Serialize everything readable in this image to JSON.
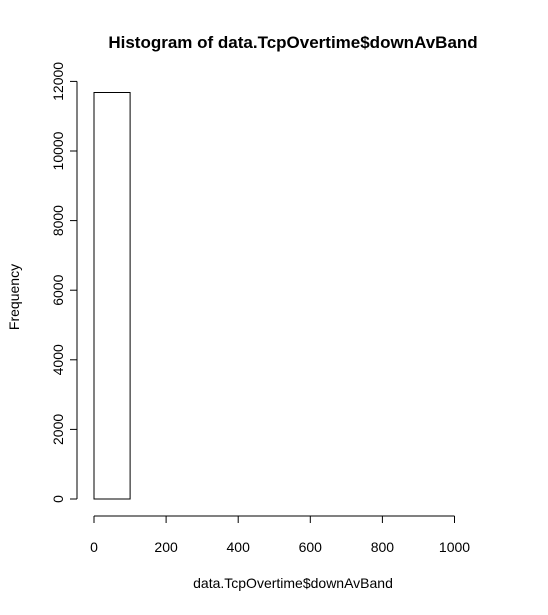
{
  "chart_data": {
    "type": "bar",
    "title": "Histogram of data.TcpOvertime$downAvBand",
    "xlabel": "data.TcpOvertime$downAvBand",
    "ylabel": "Frequency",
    "bins": [
      {
        "start": 0,
        "end": 100,
        "count": 11680
      },
      {
        "start": 100,
        "end": 200,
        "count": 0
      },
      {
        "start": 200,
        "end": 300,
        "count": 0
      },
      {
        "start": 300,
        "end": 400,
        "count": 0
      },
      {
        "start": 400,
        "end": 500,
        "count": 0
      },
      {
        "start": 500,
        "end": 600,
        "count": 0
      },
      {
        "start": 600,
        "end": 700,
        "count": 0
      },
      {
        "start": 700,
        "end": 800,
        "count": 0
      },
      {
        "start": 800,
        "end": 900,
        "count": 0
      },
      {
        "start": 900,
        "end": 1000,
        "count": 0
      },
      {
        "start": 1000,
        "end": 1100,
        "count": 0
      }
    ],
    "xlim": [
      0,
      1100
    ],
    "ylim": [
      0,
      12000
    ],
    "x_ticks": [
      {
        "value": 0,
        "label": "0"
      },
      {
        "value": 200,
        "label": "200"
      },
      {
        "value": 400,
        "label": "400"
      },
      {
        "value": 600,
        "label": "600"
      },
      {
        "value": 800,
        "label": "800"
      },
      {
        "value": 1000,
        "label": "1000"
      }
    ],
    "y_ticks": [
      {
        "value": 0,
        "label": "0"
      },
      {
        "value": 2000,
        "label": "2000"
      },
      {
        "value": 4000,
        "label": "4000"
      },
      {
        "value": 6000,
        "label": "6000"
      },
      {
        "value": 8000,
        "label": "8000"
      },
      {
        "value": 10000,
        "label": "10000"
      },
      {
        "value": 12000,
        "label": "12000"
      }
    ],
    "grid": false,
    "bar_fill": "#ffffff",
    "bar_stroke": "#000000"
  }
}
